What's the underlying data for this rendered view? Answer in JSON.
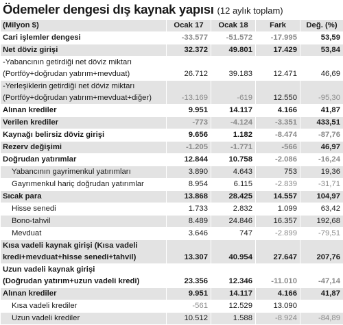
{
  "title": "Ödemeler dengesi dış kaynak yapısı",
  "subtitle": "(12 aylık toplam)",
  "columns": [
    "(Milyon $)",
    "Ocak 17",
    "Ocak 18",
    "Fark",
    "Değ. (%)"
  ],
  "rows": [
    {
      "label": [
        "Cari işlemler dengesi"
      ],
      "bold": true,
      "indent": false,
      "values": [
        "-33.577",
        "-51.572",
        "-17.995",
        "53,59"
      ]
    },
    {
      "label": [
        "Net döviz girişi"
      ],
      "bold": true,
      "indent": false,
      "values": [
        "32.372",
        "49.801",
        "17.429",
        "53,84"
      ]
    },
    {
      "label": [
        "-Yabancının getirdiği net döviz miktarı",
        "(Portföy+doğrudan yatırım+mevduat)"
      ],
      "bold": false,
      "indent": false,
      "values": [
        "26.712",
        "39.183",
        "12.471",
        "46,69"
      ]
    },
    {
      "label": [
        "-Yerleşiklerin getirdiği net döviz miktarı",
        "(Portföy+doğrudan yatırım+mevduat+diğer)"
      ],
      "bold": false,
      "indent": false,
      "values": [
        "-13.169",
        "-619",
        "12.550",
        "-95,30"
      ]
    },
    {
      "label": [
        "Alınan krediler"
      ],
      "bold": true,
      "indent": false,
      "values": [
        "9.951",
        "14.117",
        "4.166",
        "41,87"
      ]
    },
    {
      "label": [
        "Verilen krediler"
      ],
      "bold": true,
      "indent": false,
      "values": [
        "-773",
        "-4.124",
        "-3.351",
        "433,51"
      ]
    },
    {
      "label": [
        "Kaynağı belirsiz döviz girişi"
      ],
      "bold": true,
      "indent": false,
      "values": [
        "9.656",
        "1.182",
        "-8.474",
        "-87,76"
      ]
    },
    {
      "label": [
        "Rezerv değişimi"
      ],
      "bold": true,
      "indent": false,
      "values": [
        "-1.205",
        "-1.771",
        "-566",
        "46,97"
      ]
    },
    {
      "label": [
        "Doğrudan yatırımlar"
      ],
      "bold": true,
      "indent": false,
      "values": [
        "12.844",
        "10.758",
        "-2.086",
        "-16,24"
      ]
    },
    {
      "label": [
        "Yabancının gayrimenkul yatırımları"
      ],
      "bold": false,
      "indent": true,
      "values": [
        "3.890",
        "4.643",
        "753",
        "19,36"
      ]
    },
    {
      "label": [
        "Gayrımenkul hariç doğrudan yatırımlar"
      ],
      "bold": false,
      "indent": true,
      "values": [
        "8.954",
        "6.115",
        "-2.839",
        "-31,71"
      ]
    },
    {
      "label": [
        "Sıcak para"
      ],
      "bold": true,
      "indent": false,
      "values": [
        "13.868",
        "28.425",
        "14.557",
        "104,97"
      ]
    },
    {
      "label": [
        "Hisse senedi"
      ],
      "bold": false,
      "indent": true,
      "values": [
        "1.733",
        "2.832",
        "1.099",
        "63,42"
      ]
    },
    {
      "label": [
        "Bono-tahvil"
      ],
      "bold": false,
      "indent": true,
      "values": [
        "8.489",
        "24.846",
        "16.357",
        "192,68"
      ]
    },
    {
      "label": [
        "Mevduat"
      ],
      "bold": false,
      "indent": true,
      "values": [
        "3.646",
        "747",
        "-2.899",
        "-79,51"
      ]
    },
    {
      "label": [
        "Kısa vadeli kaynak girişi (Kısa vadeli",
        "kredi+mevduat+hisse senedi+tahvil)"
      ],
      "bold": true,
      "indent": false,
      "values": [
        "13.307",
        "40.954",
        "27.647",
        "207,76"
      ]
    },
    {
      "label": [
        "Uzun vadeli kaynak girişi",
        "(Doğrudan yatırım+uzun vadeli kredi)"
      ],
      "bold": true,
      "indent": false,
      "values": [
        "23.356",
        "12.346",
        "-11.010",
        "-47,14"
      ]
    },
    {
      "label": [
        "Alınan krediler"
      ],
      "bold": true,
      "indent": false,
      "values": [
        "9.951",
        "14.117",
        "4.166",
        "41,87"
      ]
    },
    {
      "label": [
        "Kısa vadeli krediler"
      ],
      "bold": false,
      "indent": true,
      "values": [
        "-561",
        "12.529",
        "13.090",
        ""
      ]
    },
    {
      "label": [
        "Uzun vadeli krediler"
      ],
      "bold": false,
      "indent": true,
      "values": [
        "10.512",
        "1.588",
        "-8.924",
        "-84,89"
      ]
    }
  ]
}
